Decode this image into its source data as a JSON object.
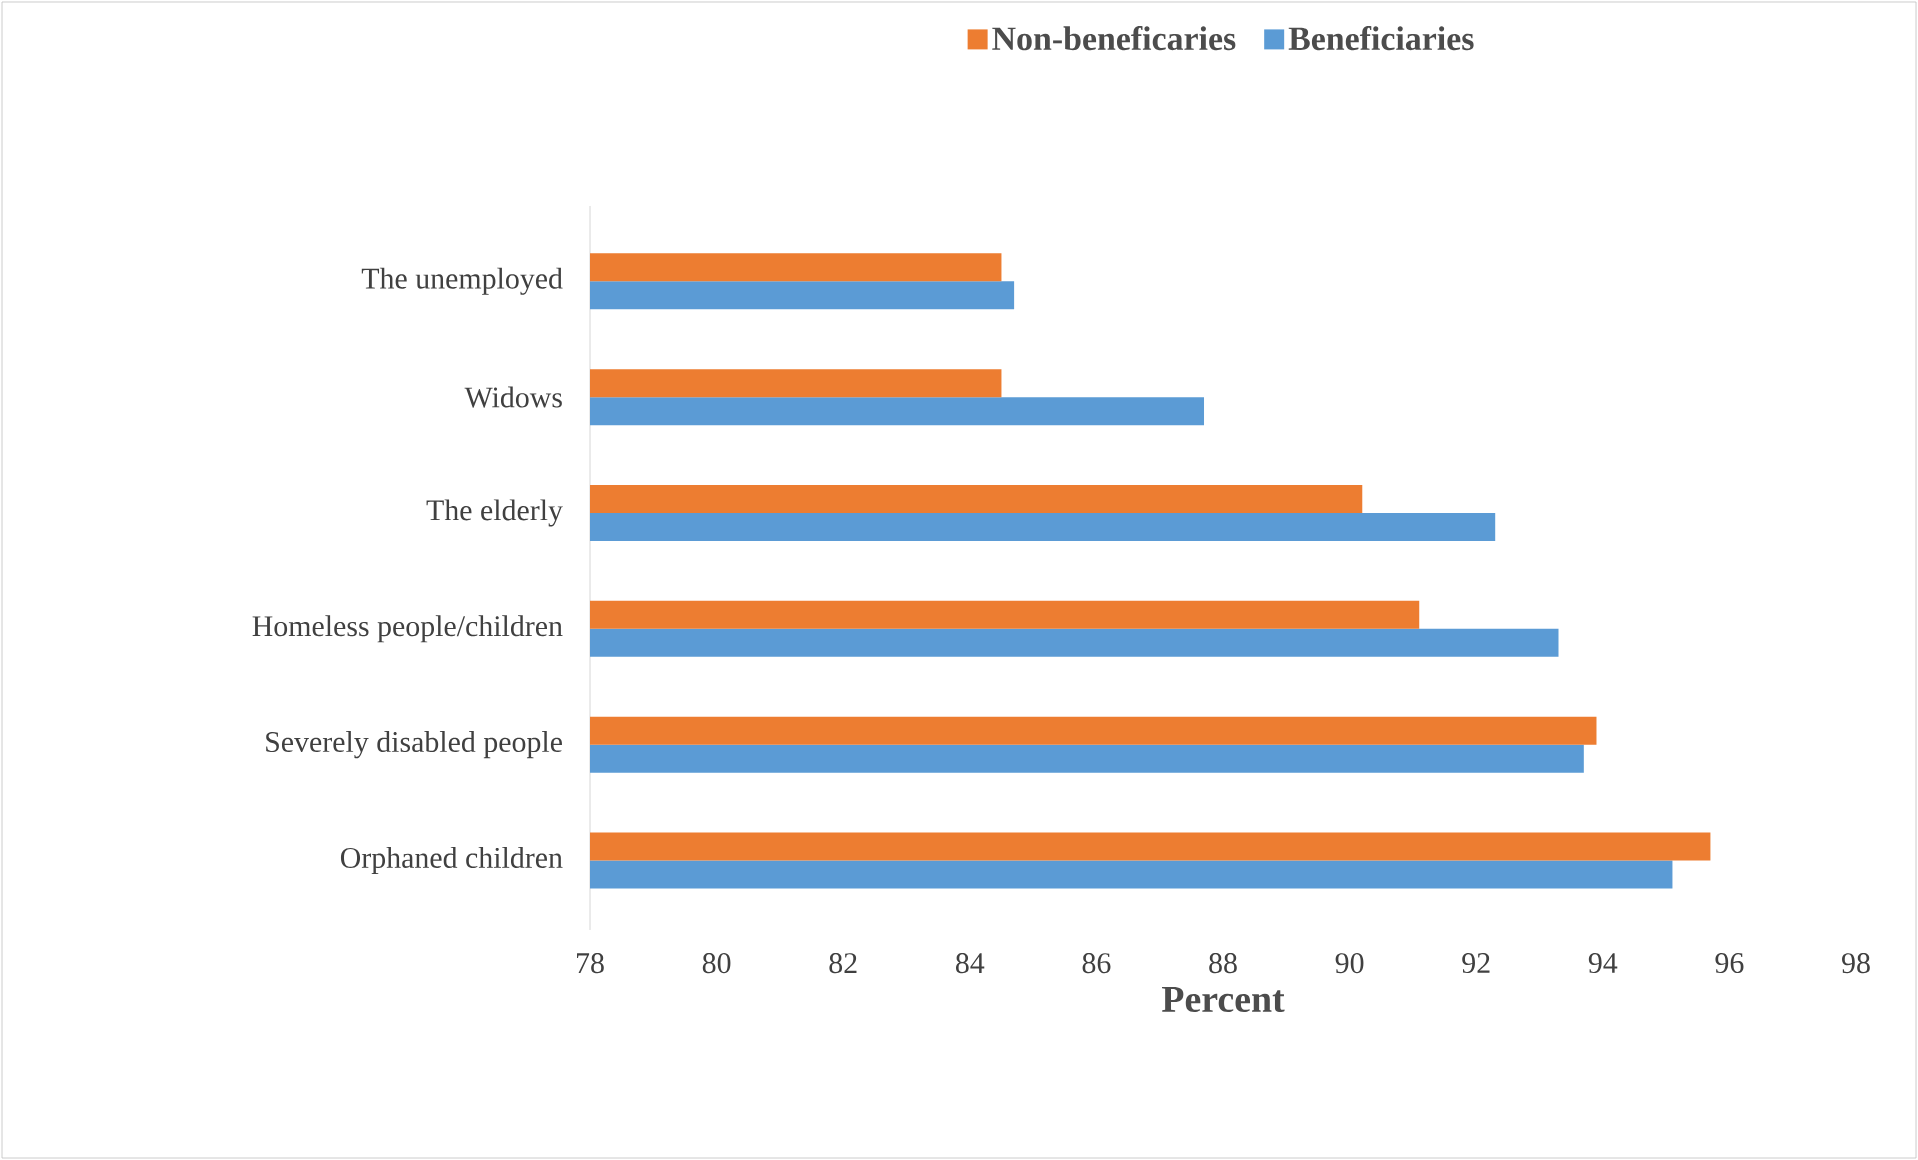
{
  "chart_data": {
    "type": "bar",
    "orientation": "horizontal",
    "xlabel": "Percent",
    "categories": [
      "The unemployed",
      "Widows",
      "The elderly",
      "Homeless people/children",
      "Severely disabled people",
      "Orphaned children"
    ],
    "series": [
      {
        "name": "Non-beneficaries",
        "color": "#ed7d31",
        "values": [
          84.5,
          84.5,
          90.2,
          91.1,
          93.9,
          95.7
        ]
      },
      {
        "name": "Beneficiaries",
        "color": "#5b9bd5",
        "values": [
          84.7,
          87.7,
          92.3,
          93.3,
          93.7,
          95.1
        ]
      }
    ],
    "xlim": [
      78,
      98
    ],
    "xticks": [
      78,
      80,
      82,
      84,
      86,
      88,
      90,
      92,
      94,
      96,
      98
    ],
    "grid": false,
    "legend": "top"
  }
}
